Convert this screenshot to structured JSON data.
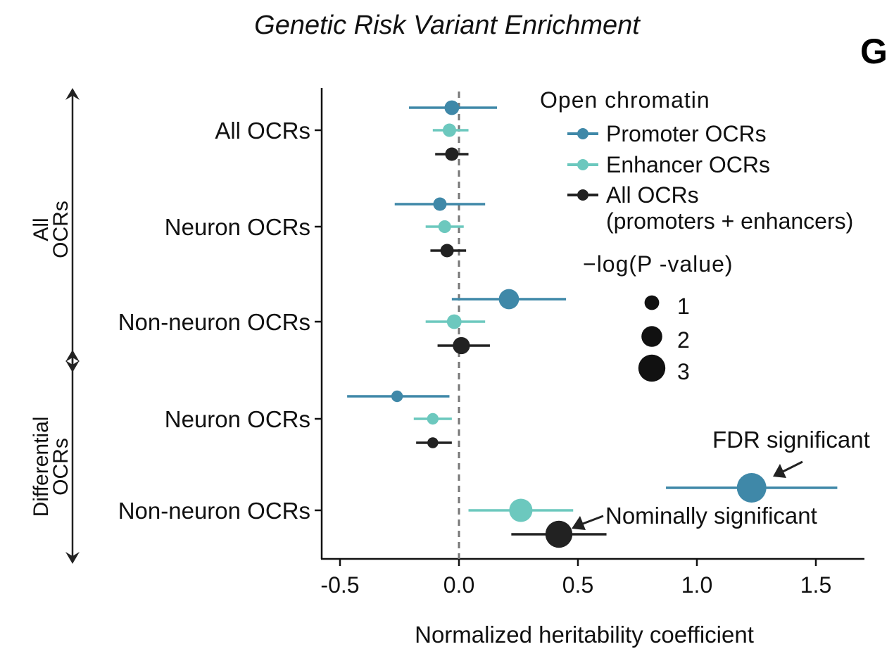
{
  "colors": {
    "promoter": "#3f88a8",
    "enhancer": "#6cc8be",
    "all": "#222222"
  },
  "chart_data": {
    "type": "scatter",
    "title": "Genetic Risk Variant Enrichment",
    "panel_label": "G",
    "xlabel": "Normalized heritability coefficient",
    "xlim": [
      -0.58,
      1.7
    ],
    "xticks": [
      -0.5,
      0.0,
      0.5,
      1.0,
      1.5
    ],
    "xtick_labels": [
      "-0.5",
      "0.0",
      "0.5",
      "1.0",
      "1.5"
    ],
    "reference_line_x": 0.0,
    "categories": [
      "All OCRs",
      "Neuron OCRs",
      "Non-neuron OCRs",
      "Neuron OCRs",
      "Non-neuron OCRs"
    ],
    "groups": [
      {
        "label_line1": "All",
        "label_line2": "OCRs",
        "categories": [
          0,
          1,
          2
        ]
      },
      {
        "label_line1": "Differential",
        "label_line2": "OCRs",
        "categories": [
          3,
          4
        ]
      }
    ],
    "series": [
      {
        "name": "Promoter OCRs",
        "color_key": "promoter",
        "estimates": [
          -0.03,
          -0.08,
          0.21,
          -0.26,
          1.23
        ],
        "ci_low": [
          -0.21,
          -0.27,
          -0.03,
          -0.47,
          0.87
        ],
        "ci_high": [
          0.16,
          0.11,
          0.45,
          -0.04,
          1.59
        ],
        "neglog10p": [
          1.0,
          0.8,
          1.9,
          0.5,
          3.4
        ]
      },
      {
        "name": "Enhancer OCRs",
        "color_key": "enhancer",
        "estimates": [
          -0.04,
          -0.06,
          -0.02,
          -0.11,
          0.26
        ],
        "ci_low": [
          -0.11,
          -0.14,
          -0.14,
          -0.19,
          0.04
        ],
        "ci_high": [
          0.04,
          0.02,
          0.11,
          -0.03,
          0.48
        ],
        "neglog10p": [
          0.8,
          0.7,
          1.0,
          0.5,
          2.4
        ]
      },
      {
        "name": "All OCRs\n(promoters + enhancers)",
        "color_key": "all",
        "estimates": [
          -0.03,
          -0.05,
          0.01,
          -0.11,
          0.42
        ],
        "ci_low": [
          -0.1,
          -0.12,
          -0.09,
          -0.18,
          0.22
        ],
        "ci_high": [
          0.04,
          0.03,
          0.13,
          -0.03,
          0.62
        ],
        "neglog10p": [
          0.8,
          0.8,
          1.4,
          0.4,
          3.0
        ]
      }
    ],
    "legend": {
      "color_title": "Open chromatin",
      "color_entries": [
        "Promoter OCRs",
        "Enhancer OCRs",
        "All OCRs",
        "(promoters + enhancers)"
      ],
      "size_title": "−log(P -value)",
      "size_values": [
        1,
        2,
        3
      ],
      "size_labels": [
        "1",
        "2",
        "3"
      ],
      "position": "top-right"
    },
    "annotations": [
      {
        "text": "FDR significant",
        "series": 0,
        "category": 4
      },
      {
        "text": "Nominally significant",
        "series": 2,
        "category": 4
      }
    ]
  }
}
